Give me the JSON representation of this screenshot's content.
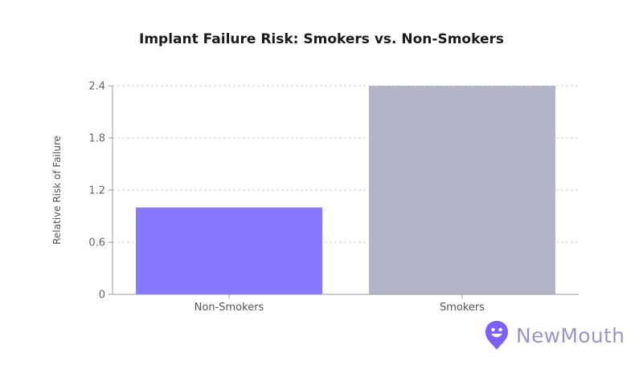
{
  "chart_data": {
    "type": "bar",
    "title": "Implant Failure Risk: Smokers vs. Non-Smokers",
    "xlabel": "",
    "ylabel": "Relative Risk of Failure",
    "categories": [
      "Non-Smokers",
      "Smokers"
    ],
    "values": [
      1.0,
      2.4
    ],
    "colors": [
      "#8679ff",
      "#b4b3c8"
    ],
    "ylim": [
      0,
      2.4
    ],
    "yticks": [
      "0",
      "0.6",
      "1.2",
      "1.8",
      "2.4"
    ],
    "grid": true
  },
  "brand": {
    "name": "NewMouth",
    "icon": "newmouth-logo-icon",
    "accent": "#7b61ff"
  }
}
